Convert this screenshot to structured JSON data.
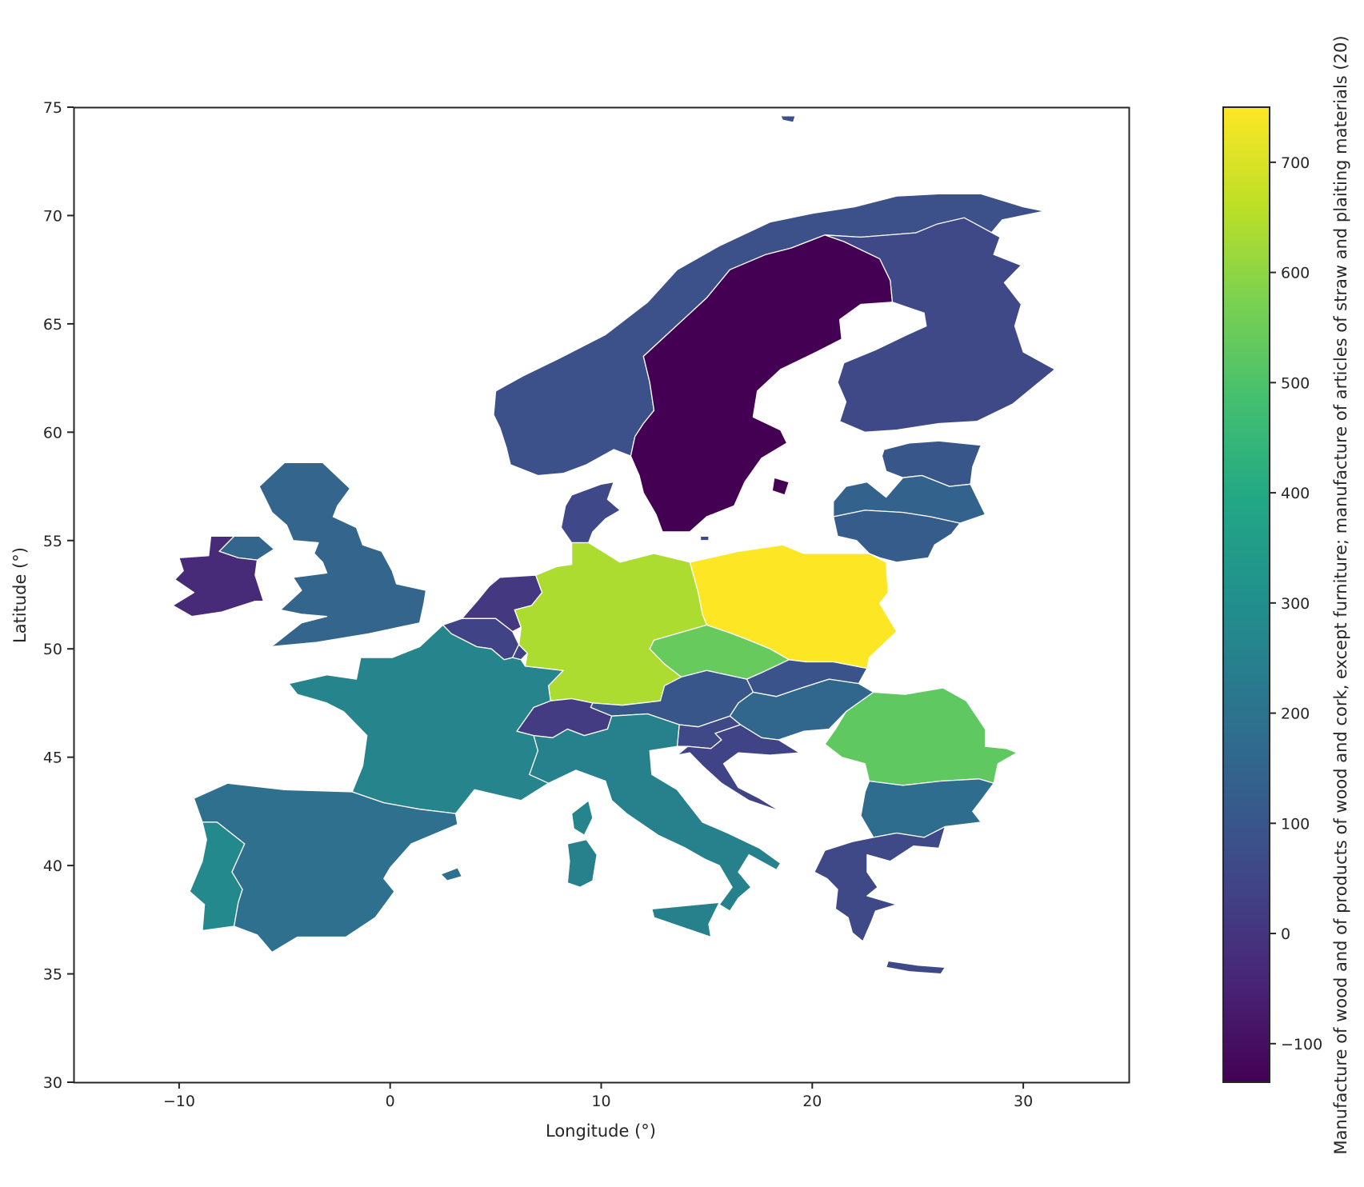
{
  "chart_data": {
    "type": "choropleth",
    "xlabel": "Longitude (°)",
    "ylabel": "Latitude (°)",
    "xlim": [
      -15,
      35
    ],
    "ylim": [
      30,
      75
    ],
    "x_ticks": [
      -10,
      0,
      10,
      20,
      30
    ],
    "y_ticks": [
      30,
      35,
      40,
      45,
      50,
      55,
      60,
      65,
      70,
      75
    ],
    "x_tick_labels": [
      "−10",
      "0",
      "10",
      "20",
      "30"
    ],
    "y_tick_labels": [
      "30",
      "35",
      "40",
      "45",
      "50",
      "55",
      "60",
      "65",
      "70",
      "75"
    ],
    "colorbar": {
      "label": "Manufacture of wood and of products of wood and cork, except furniture; manufacture of articles of straw and plaiting materials (20)",
      "colormap": "viridis",
      "vmin": -135,
      "vmax": 750,
      "ticks": [
        -100,
        0,
        100,
        200,
        300,
        400,
        500,
        600,
        700
      ],
      "tick_labels": [
        "−100",
        "0",
        "100",
        "200",
        "300",
        "400",
        "500",
        "600",
        "700"
      ]
    },
    "regions": [
      {
        "name": "Sweden",
        "value": -135
      },
      {
        "name": "Norway",
        "value": 80
      },
      {
        "name": "Finland",
        "value": 60
      },
      {
        "name": "Estonia",
        "value": 100
      },
      {
        "name": "Latvia",
        "value": 145
      },
      {
        "name": "Lithuania",
        "value": 120
      },
      {
        "name": "Denmark",
        "value": 55
      },
      {
        "name": "United Kingdom",
        "value": 150
      },
      {
        "name": "Northern Ireland",
        "value": 150
      },
      {
        "name": "Ireland",
        "value": -30
      },
      {
        "name": "Netherlands",
        "value": 10
      },
      {
        "name": "Belgium",
        "value": 40
      },
      {
        "name": "Luxembourg",
        "value": 40
      },
      {
        "name": "Germany",
        "value": 640
      },
      {
        "name": "Poland",
        "value": 750
      },
      {
        "name": "Czechia",
        "value": 540
      },
      {
        "name": "Slovakia",
        "value": 90
      },
      {
        "name": "Austria",
        "value": 100
      },
      {
        "name": "Hungary",
        "value": 160
      },
      {
        "name": "Romania",
        "value": 530
      },
      {
        "name": "Bulgaria",
        "value": 180
      },
      {
        "name": "Slovenia",
        "value": 60
      },
      {
        "name": "Croatia",
        "value": 40
      },
      {
        "name": "Switzerland",
        "value": 20
      },
      {
        "name": "France",
        "value": 260
      },
      {
        "name": "Italy",
        "value": 250
      },
      {
        "name": "Sardinia",
        "value": 250
      },
      {
        "name": "Sicily",
        "value": 250
      },
      {
        "name": "Corsica",
        "value": 260
      },
      {
        "name": "Spain",
        "value": 190
      },
      {
        "name": "Balearic Islands",
        "value": 190
      },
      {
        "name": "Portugal",
        "value": 280
      },
      {
        "name": "Greece",
        "value": 60
      },
      {
        "name": "Crete",
        "value": 60
      },
      {
        "name": "Gotland",
        "value": -135
      },
      {
        "name": "Bornholm",
        "value": 55
      },
      {
        "name": "Svalbard",
        "value": 80
      }
    ]
  }
}
